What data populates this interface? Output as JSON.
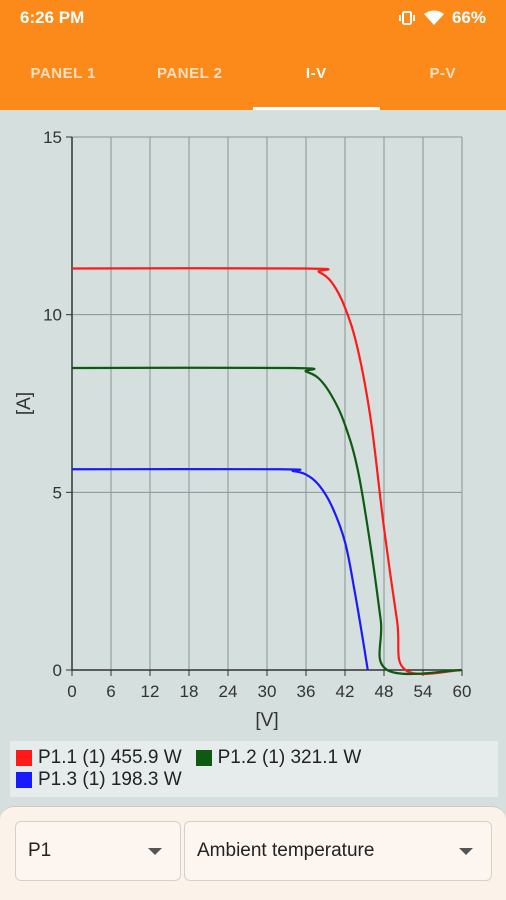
{
  "status": {
    "time": "6:26 PM",
    "battery": "66%"
  },
  "tabs": [
    {
      "label": "PANEL 1",
      "active": false
    },
    {
      "label": "PANEL 2",
      "active": false
    },
    {
      "label": "I-V",
      "active": true
    },
    {
      "label": "P-V",
      "active": false
    }
  ],
  "legend": [
    {
      "label": "P1.1 (1) 455.9 W",
      "color": "#ff1a1a"
    },
    {
      "label": "P1.2 (1) 321.1 W",
      "color": "#0f5a12"
    },
    {
      "label": "P1.3 (1) 198.3 W",
      "color": "#1a1aff"
    }
  ],
  "controls": {
    "panel_select": "P1",
    "param_select": "Ambient temperature"
  },
  "chart_data": {
    "type": "line",
    "xlabel": "[V]",
    "ylabel": "[A]",
    "xlim": [
      0,
      60
    ],
    "ylim": [
      0,
      15
    ],
    "xticks": [
      0,
      6,
      12,
      18,
      24,
      30,
      36,
      42,
      48,
      54,
      60
    ],
    "yticks": [
      0,
      5,
      10,
      15
    ],
    "grid": true,
    "series": [
      {
        "name": "P1.1 (1) 455.9 W",
        "color": "#ff1a1a",
        "x": [
          0,
          36,
          38,
          40,
          42,
          44,
          46,
          48,
          50,
          51.3,
          60
        ],
        "y": [
          11.3,
          11.3,
          11.2,
          10.9,
          10.2,
          9.0,
          7.0,
          4.0,
          1.4,
          0,
          0
        ]
      },
      {
        "name": "P1.2 (1) 321.1 W",
        "color": "#0f5a12",
        "x": [
          0,
          34,
          36,
          38,
          40,
          42,
          44,
          46,
          47.5,
          48.5,
          60
        ],
        "y": [
          8.5,
          8.5,
          8.4,
          8.2,
          7.7,
          6.9,
          5.6,
          3.4,
          1.4,
          0,
          0
        ]
      },
      {
        "name": "P1.3 (1) 198.3 W",
        "color": "#1a1aff",
        "x": [
          0,
          32,
          34,
          36,
          38,
          40,
          42,
          43.5,
          44.8,
          45.5
        ],
        "y": [
          5.65,
          5.65,
          5.6,
          5.5,
          5.2,
          4.6,
          3.6,
          2.2,
          0.8,
          0
        ]
      }
    ]
  }
}
